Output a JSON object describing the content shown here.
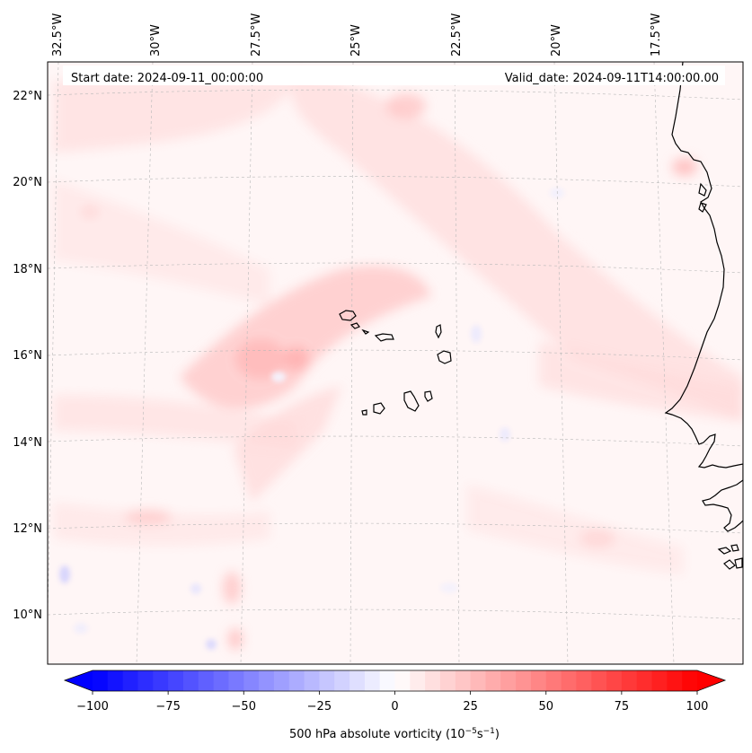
{
  "header": {
    "start_date": "Start date: 2024-09-11_00:00:00",
    "valid_date": "Valid_date: 2024-09-11T14:00:00.00"
  },
  "map": {
    "projection_note": "Lambert-like conic, gridlines every 2.5° lon and 2° lat",
    "longitude_labels": [
      "32.5°W",
      "30°W",
      "27.5°W",
      "25°W",
      "22.5°W",
      "20°W",
      "17.5°W"
    ],
    "latitude_labels": [
      "22°N",
      "20°N",
      "18°N",
      "16°N",
      "14°N",
      "12°N",
      "10°N"
    ],
    "colors": {
      "coastline": "#000000",
      "gridline": "#b0b0b0",
      "background": "#fff6f6"
    }
  },
  "colorbar": {
    "label_prefix": "500 hPa absolute vorticity (10",
    "label_exp1": "−5",
    "label_mid": "s",
    "label_exp2": "−1",
    "label_suffix": ")",
    "ticks": [
      "−100",
      "−75",
      "−50",
      "−25",
      "0",
      "25",
      "50",
      "75",
      "100"
    ],
    "range": [
      -100,
      100
    ],
    "colors": {
      "min": "#0000ff",
      "mid": "#ffffff",
      "max": "#ff0000"
    },
    "steps": 40
  }
}
